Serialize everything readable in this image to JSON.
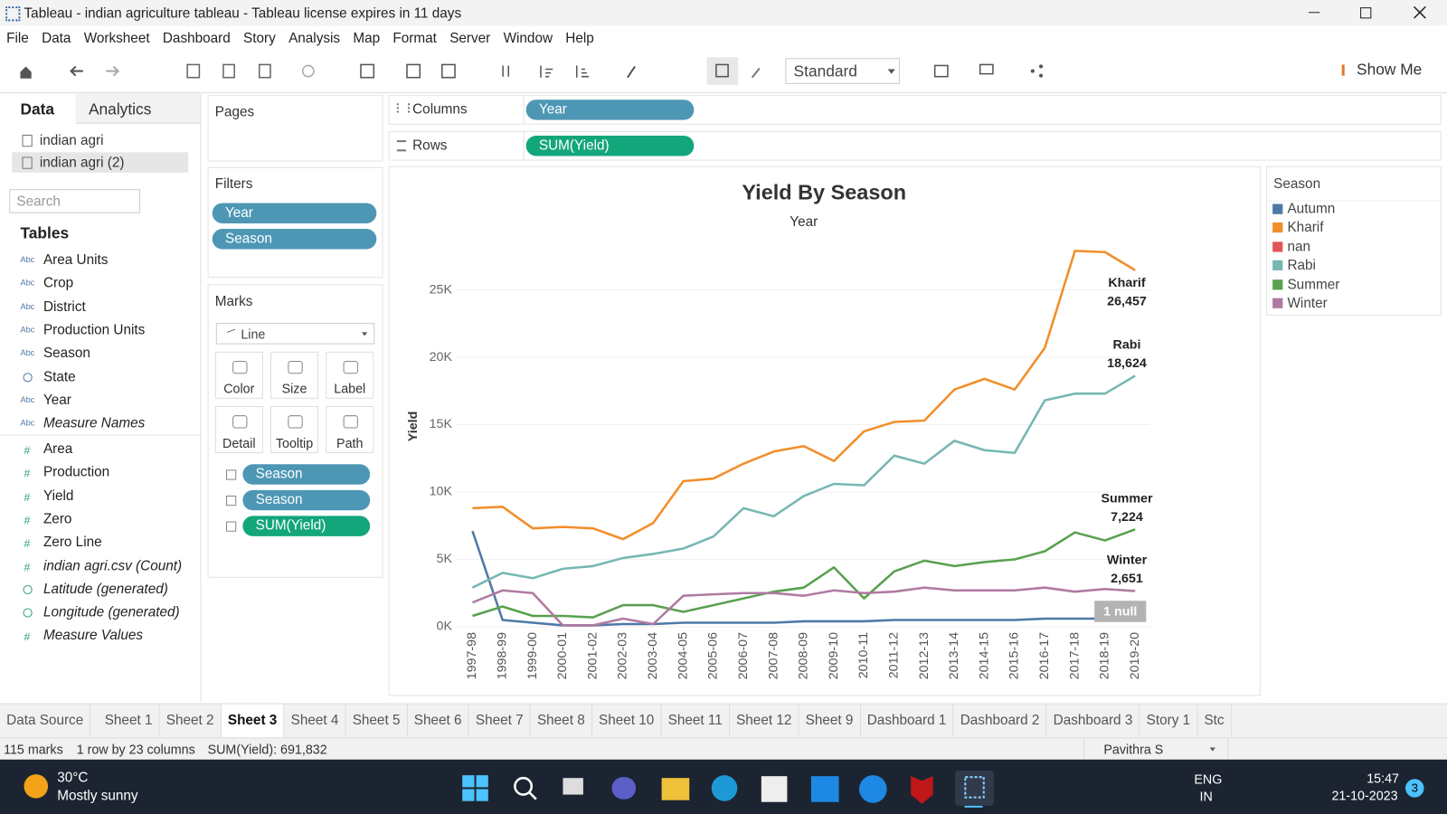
{
  "window": {
    "title": "Tableau - indian agriculture tableau - Tableau license expires in 11 days"
  },
  "menu": [
    "File",
    "Data",
    "Worksheet",
    "Dashboard",
    "Story",
    "Analysis",
    "Map",
    "Format",
    "Server",
    "Window",
    "Help"
  ],
  "toolbar": {
    "standard": "Standard",
    "show_me": "Show Me"
  },
  "data_pane": {
    "tabs": [
      "Data",
      "Analytics"
    ],
    "sources": [
      "indian agri",
      "indian agri (2)"
    ],
    "search": "Search",
    "tables": "Tables",
    "dimensions": [
      {
        "name": "Area Units",
        "icon": "Abc"
      },
      {
        "name": "Crop",
        "icon": "Abc"
      },
      {
        "name": "District",
        "icon": "Abc"
      },
      {
        "name": "Production Units",
        "icon": "Abc"
      },
      {
        "name": "Season",
        "icon": "Abc"
      },
      {
        "name": "State",
        "icon": "globe"
      },
      {
        "name": "Year",
        "icon": "Abc"
      },
      {
        "name": "Measure Names",
        "icon": "Abc",
        "italic": true
      }
    ],
    "measures": [
      {
        "name": "Area",
        "icon": "#"
      },
      {
        "name": "Production",
        "icon": "#"
      },
      {
        "name": "Yield",
        "icon": "#"
      },
      {
        "name": "Zero",
        "icon": "#"
      },
      {
        "name": "Zero Line",
        "icon": "#"
      },
      {
        "name": "indian agri.csv (Count)",
        "icon": "#",
        "italic": true
      },
      {
        "name": "Latitude (generated)",
        "icon": "globe",
        "italic": true
      },
      {
        "name": "Longitude (generated)",
        "icon": "globe",
        "italic": true
      },
      {
        "name": "Measure Values",
        "icon": "#",
        "italic": true
      }
    ]
  },
  "pages": {
    "title": "Pages"
  },
  "filters": {
    "title": "Filters",
    "pills": [
      "Year",
      "Season"
    ]
  },
  "marks": {
    "title": "Marks",
    "type": "Line",
    "buttons": [
      "Color",
      "Size",
      "Label",
      "Detail",
      "Tooltip",
      "Path"
    ],
    "pills": [
      {
        "text": "Season",
        "kind": "dim"
      },
      {
        "text": "Season",
        "kind": "dim"
      },
      {
        "text": "SUM(Yield)",
        "kind": "measure"
      }
    ]
  },
  "shelves": {
    "columns": {
      "label": "Columns",
      "pill": "Year"
    },
    "rows": {
      "label": "Rows",
      "pill": "SUM(Yield)"
    }
  },
  "chart_data": {
    "type": "line",
    "title": "Yield By Season",
    "subtitle": "Year",
    "y_label": "Yield",
    "legend_title": "Season",
    "null_indicator": "1 null",
    "categories": [
      "1997-98",
      "1998-99",
      "1999-00",
      "2000-01",
      "2001-02",
      "2002-03",
      "2003-04",
      "2004-05",
      "2005-06",
      "2006-07",
      "2007-08",
      "2008-09",
      "2009-10",
      "2010-11",
      "2011-12",
      "2012-13",
      "2013-14",
      "2014-15",
      "2015-16",
      "2016-17",
      "2017-18",
      "2018-19",
      "2019-20"
    ],
    "ylim": [
      -200,
      28500
    ],
    "yticks": [
      {
        "value": 0,
        "label": "0K"
      },
      {
        "value": 5000,
        "label": "5K"
      },
      {
        "value": 10000,
        "label": "10K"
      },
      {
        "value": 15000,
        "label": "15K"
      },
      {
        "value": 20000,
        "label": "20K"
      },
      {
        "value": 25000,
        "label": "25K"
      }
    ],
    "grid": true,
    "series": [
      {
        "name": "Autumn",
        "color": "#4e79a7",
        "values": [
          7100,
          500,
          300,
          100,
          100,
          200,
          200,
          300,
          300,
          300,
          300,
          400,
          400,
          400,
          500,
          500,
          500,
          500,
          500,
          600,
          600,
          600,
          600
        ]
      },
      {
        "name": "Kharif",
        "color": "#f28e2b",
        "values": [
          8800,
          8900,
          7300,
          7400,
          7300,
          6500,
          7700,
          10800,
          11000,
          12100,
          13000,
          13400,
          12300,
          14500,
          15200,
          15300,
          17600,
          18400,
          17600,
          20700,
          27900,
          27800,
          26457
        ],
        "value_labels": [
          null,
          null,
          null,
          null,
          null,
          null,
          null,
          null,
          null,
          null,
          null,
          null,
          null,
          null,
          null,
          null,
          null,
          null,
          null,
          null,
          null,
          null,
          "26,457"
        ]
      },
      {
        "name": "nan",
        "color": "#e15759",
        "values": [
          null,
          null,
          null,
          null,
          null,
          null,
          null,
          null,
          null,
          null,
          null,
          null,
          null,
          null,
          null,
          null,
          null,
          null,
          null,
          null,
          null,
          null,
          null
        ]
      },
      {
        "name": "Rabi",
        "color": "#76b7b2",
        "values": [
          2900,
          4000,
          3600,
          4300,
          4500,
          5100,
          5400,
          5800,
          6700,
          8800,
          8200,
          9700,
          10600,
          10500,
          12700,
          12100,
          13800,
          13100,
          12900,
          16800,
          17300,
          17300,
          18624
        ],
        "value_labels": [
          null,
          null,
          null,
          null,
          null,
          null,
          null,
          null,
          null,
          null,
          null,
          null,
          null,
          null,
          null,
          null,
          null,
          null,
          null,
          null,
          null,
          null,
          "18,624"
        ]
      },
      {
        "name": "Summer",
        "color": "#59a14f",
        "values": [
          800,
          1500,
          800,
          800,
          700,
          1600,
          1600,
          1100,
          1600,
          2100,
          2600,
          2900,
          4400,
          2100,
          4100,
          4900,
          4500,
          4800,
          5000,
          5600,
          7000,
          6400,
          7224
        ],
        "value_labels": [
          null,
          null,
          null,
          null,
          null,
          null,
          null,
          null,
          null,
          null,
          null,
          null,
          null,
          null,
          null,
          null,
          null,
          null,
          null,
          null,
          null,
          null,
          "7,224"
        ]
      },
      {
        "name": "Winter",
        "color": "#b07aa1",
        "values": [
          1800,
          2700,
          2500,
          100,
          100,
          600,
          200,
          2300,
          2400,
          2500,
          2500,
          2300,
          2700,
          2500,
          2600,
          2900,
          2700,
          2700,
          2700,
          2900,
          2600,
          2800,
          2651
        ],
        "value_labels": [
          null,
          null,
          null,
          null,
          null,
          null,
          null,
          null,
          null,
          null,
          null,
          null,
          null,
          null,
          null,
          null,
          null,
          null,
          null,
          null,
          null,
          null,
          "2,651"
        ]
      }
    ]
  },
  "sheet_tabs": {
    "items": [
      "Data Source",
      "Sheet 1",
      "Sheet 2",
      "Sheet 3",
      "Sheet 4",
      "Sheet 5",
      "Sheet 6",
      "Sheet 7",
      "Sheet 8",
      "Sheet 10",
      "Sheet 11",
      "Sheet 12",
      "Sheet 9",
      "Dashboard 1",
      "Dashboard 2",
      "Dashboard 3",
      "Story 1",
      "Stc"
    ],
    "active": 3
  },
  "status": {
    "marks": "115 marks",
    "shape": "1 row by 23 columns",
    "sum": "SUM(Yield): 691,832",
    "user": "Pavithra S"
  },
  "taskbar": {
    "temp": "30°C",
    "weather": "Mostly sunny",
    "lang": "ENG",
    "region": "IN",
    "time": "15:47",
    "date": "21-10-2023",
    "badge": "3"
  }
}
